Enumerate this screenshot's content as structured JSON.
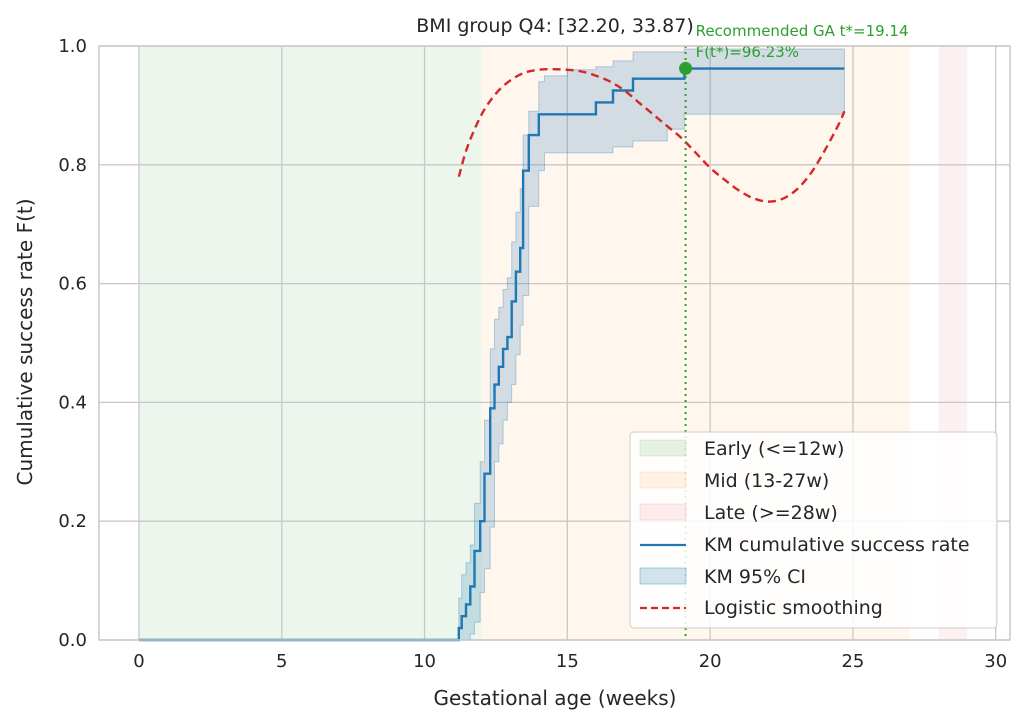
{
  "chart_data": {
    "type": "line",
    "title": "BMI group Q4: [32.20, 33.87)",
    "xlabel": "Gestational age (weeks)",
    "ylabel": "Cumulative success rate F(t)",
    "xlim": [
      -1.4,
      30.5
    ],
    "ylim": [
      0.0,
      1.0
    ],
    "xticks": [
      0,
      5,
      10,
      15,
      20,
      25,
      30
    ],
    "xtick_labels": [
      "0",
      "5",
      "10",
      "15",
      "20",
      "25",
      "30"
    ],
    "yticks": [
      0.0,
      0.2,
      0.4,
      0.6,
      0.8,
      1.0
    ],
    "ytick_labels": [
      "0.0",
      "0.2",
      "0.4",
      "0.6",
      "0.8",
      "1.0"
    ],
    "grid": true,
    "legend_position": "lower-right",
    "regions": [
      {
        "name": "Early (<=12w)",
        "x0": 0,
        "x1": 12,
        "color": "#2ca02c",
        "opacity": 0.09
      },
      {
        "name": "Mid (13-27w)",
        "x0": 12,
        "x1": 27,
        "color": "#ff7f0e",
        "opacity": 0.07
      },
      {
        "name": "Late (>=28w)",
        "x0": 28,
        "x1": 29,
        "color": "#d62728",
        "opacity": 0.07
      }
    ],
    "km": {
      "name": "KM cumulative success rate",
      "color": "#1f77b4",
      "x": [
        0,
        11.2,
        11.2,
        11.3,
        11.3,
        11.45,
        11.45,
        11.6,
        11.6,
        11.75,
        11.75,
        11.95,
        11.95,
        12.1,
        12.1,
        12.3,
        12.3,
        12.45,
        12.45,
        12.6,
        12.6,
        12.75,
        12.75,
        12.9,
        12.9,
        13.05,
        13.05,
        13.2,
        13.2,
        13.35,
        13.35,
        13.45,
        13.45,
        13.65,
        13.65,
        14.0,
        14.0,
        14.2,
        14.2,
        16.0,
        16.0,
        16.6,
        16.6,
        17.3,
        17.3,
        19.1,
        19.1,
        24.7
      ],
      "y": [
        0.0,
        0.0,
        0.02,
        0.02,
        0.04,
        0.04,
        0.06,
        0.06,
        0.09,
        0.09,
        0.15,
        0.15,
        0.2,
        0.2,
        0.28,
        0.28,
        0.39,
        0.39,
        0.43,
        0.43,
        0.46,
        0.46,
        0.49,
        0.49,
        0.51,
        0.51,
        0.57,
        0.57,
        0.62,
        0.62,
        0.66,
        0.66,
        0.79,
        0.79,
        0.85,
        0.85,
        0.885,
        0.885,
        0.885,
        0.885,
        0.905,
        0.905,
        0.925,
        0.925,
        0.945,
        0.945,
        0.962,
        0.962
      ]
    },
    "ci": {
      "name": "KM 95% CI",
      "color": "#1f77b4",
      "x": [
        11.2,
        11.3,
        11.45,
        11.6,
        11.75,
        11.95,
        12.1,
        12.3,
        12.45,
        12.6,
        12.75,
        12.9,
        13.05,
        13.2,
        13.35,
        13.45,
        13.65,
        14.0,
        14.2,
        15.0,
        16.0,
        16.6,
        17.3,
        18.5,
        19.1,
        24.7
      ],
      "lower": [
        0.0,
        0.0,
        0.0,
        0.01,
        0.03,
        0.08,
        0.12,
        0.19,
        0.3,
        0.33,
        0.37,
        0.4,
        0.43,
        0.48,
        0.53,
        0.58,
        0.73,
        0.79,
        0.82,
        0.82,
        0.82,
        0.83,
        0.84,
        0.86,
        0.885,
        0.885
      ],
      "upper": [
        0.07,
        0.11,
        0.13,
        0.16,
        0.23,
        0.3,
        0.37,
        0.49,
        0.54,
        0.56,
        0.59,
        0.61,
        0.67,
        0.72,
        0.76,
        0.85,
        0.89,
        0.94,
        0.95,
        0.96,
        0.965,
        0.975,
        0.99,
        0.99,
        0.995,
        0.995
      ]
    },
    "smoothing": {
      "name": "Logistic smoothing",
      "color": "#d62728",
      "x": [
        11.2,
        11.5,
        12.0,
        12.5,
        13.0,
        13.5,
        14.0,
        14.5,
        15.0,
        15.5,
        16.0,
        16.5,
        17.0,
        17.5,
        18.0,
        18.5,
        19.0,
        19.5,
        20.0,
        20.5,
        21.0,
        21.5,
        22.0,
        22.5,
        23.0,
        23.5,
        24.0,
        24.5,
        24.7
      ],
      "y": [
        0.78,
        0.83,
        0.885,
        0.92,
        0.942,
        0.955,
        0.96,
        0.961,
        0.96,
        0.957,
        0.95,
        0.94,
        0.925,
        0.905,
        0.885,
        0.865,
        0.845,
        0.82,
        0.795,
        0.775,
        0.757,
        0.744,
        0.738,
        0.742,
        0.757,
        0.784,
        0.823,
        0.868,
        0.89
      ]
    },
    "recommended": {
      "x": 19.14,
      "y": 0.9623,
      "color": "#2ca02c",
      "label_line1": "Recommended GA t*=19.14",
      "label_line2": "F(t*)=96.23%"
    }
  }
}
